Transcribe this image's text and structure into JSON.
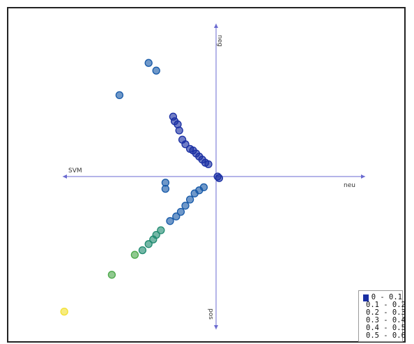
{
  "chart_data": {
    "type": "scatter",
    "axes": {
      "left": "SVM",
      "right": "neu",
      "top": "neg",
      "bottom": "pos"
    },
    "x_range": [
      -1.0,
      1.0
    ],
    "y_range": [
      -1.0,
      1.0
    ],
    "grid": false,
    "legend_placement": "bottom-right",
    "legend": {
      "entries": [
        {
          "label": "0 - 0.1",
          "color": "#1a2fa3"
        },
        {
          "label": "0.1 - 0.2",
          "color": "#1659a8"
        },
        {
          "label": "0.2 - 0.3",
          "color": "#1f8a70"
        },
        {
          "label": "0.3 - 0.4",
          "color": "#4ca84a"
        },
        {
          "label": "0.4 - 0.5",
          "color": "#b2c92e"
        },
        {
          "label": "0.5 - 0.6",
          "color": "#f2e030"
        }
      ]
    },
    "points": [
      {
        "x": 0.02,
        "y": -0.01,
        "bin": 0
      },
      {
        "x": 0.01,
        "y": 0.0,
        "bin": 0
      },
      {
        "x": -0.05,
        "y": 0.08,
        "bin": 0
      },
      {
        "x": -0.07,
        "y": 0.09,
        "bin": 0
      },
      {
        "x": -0.09,
        "y": 0.11,
        "bin": 0
      },
      {
        "x": -0.11,
        "y": 0.13,
        "bin": 0
      },
      {
        "x": -0.13,
        "y": 0.15,
        "bin": 0
      },
      {
        "x": -0.15,
        "y": 0.17,
        "bin": 0
      },
      {
        "x": -0.17,
        "y": 0.18,
        "bin": 0
      },
      {
        "x": -0.2,
        "y": 0.21,
        "bin": 0
      },
      {
        "x": -0.22,
        "y": 0.24,
        "bin": 0
      },
      {
        "x": -0.24,
        "y": 0.3,
        "bin": 0
      },
      {
        "x": -0.25,
        "y": 0.34,
        "bin": 0
      },
      {
        "x": -0.27,
        "y": 0.36,
        "bin": 0
      },
      {
        "x": -0.28,
        "y": 0.39,
        "bin": 0
      },
      {
        "x": -0.08,
        "y": -0.07,
        "bin": 1
      },
      {
        "x": -0.11,
        "y": -0.09,
        "bin": 1
      },
      {
        "x": -0.14,
        "y": -0.11,
        "bin": 1
      },
      {
        "x": -0.17,
        "y": -0.15,
        "bin": 1
      },
      {
        "x": -0.2,
        "y": -0.19,
        "bin": 1
      },
      {
        "x": -0.23,
        "y": -0.23,
        "bin": 1
      },
      {
        "x": -0.26,
        "y": -0.26,
        "bin": 1
      },
      {
        "x": -0.3,
        "y": -0.29,
        "bin": 1
      },
      {
        "x": -0.33,
        "y": -0.04,
        "bin": 1
      },
      {
        "x": -0.33,
        "y": -0.08,
        "bin": 1
      },
      {
        "x": -0.36,
        "y": -0.35,
        "bin": 2
      },
      {
        "x": -0.39,
        "y": -0.38,
        "bin": 2
      },
      {
        "x": -0.41,
        "y": -0.41,
        "bin": 2
      },
      {
        "x": -0.44,
        "y": -0.44,
        "bin": 2
      },
      {
        "x": -0.48,
        "y": -0.48,
        "bin": 2
      },
      {
        "x": -0.53,
        "y": -0.51,
        "bin": 3
      },
      {
        "x": -0.68,
        "y": -0.64,
        "bin": 3
      },
      {
        "x": -0.99,
        "y": -0.88,
        "bin": 5
      },
      {
        "x": -0.39,
        "y": 0.69,
        "bin": 1
      },
      {
        "x": -0.44,
        "y": 0.74,
        "bin": 1
      },
      {
        "x": -0.63,
        "y": 0.53,
        "bin": 1
      }
    ]
  }
}
